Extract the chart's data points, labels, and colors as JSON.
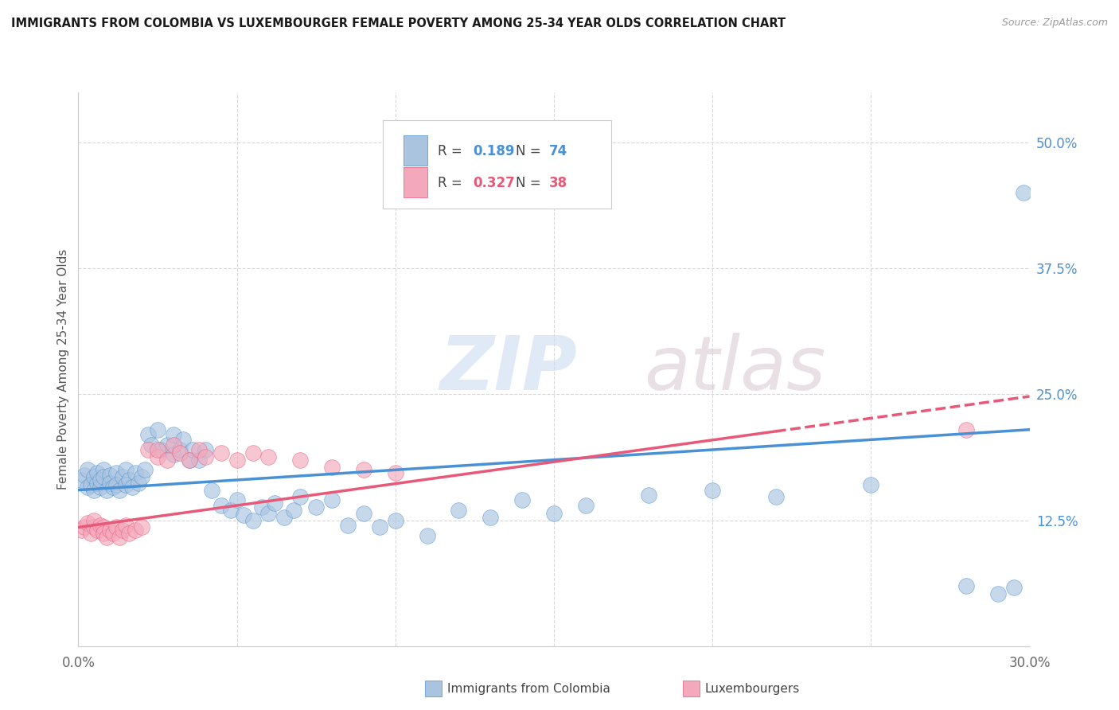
{
  "title": "IMMIGRANTS FROM COLOMBIA VS LUXEMBOURGER FEMALE POVERTY AMONG 25-34 YEAR OLDS CORRELATION CHART",
  "source": "Source: ZipAtlas.com",
  "ylabel": "Female Poverty Among 25-34 Year Olds",
  "xlim": [
    0.0,
    0.3
  ],
  "ylim": [
    0.0,
    0.55
  ],
  "yticks": [
    0.0,
    0.125,
    0.25,
    0.375,
    0.5
  ],
  "ytick_labels": [
    "",
    "12.5%",
    "25.0%",
    "37.5%",
    "50.0%"
  ],
  "xticks": [
    0.0,
    0.3
  ],
  "xtick_labels": [
    "0.0%",
    "30.0%"
  ],
  "legend1_label": "Immigrants from Colombia",
  "legend2_label": "Luxembourgers",
  "r1": 0.189,
  "n1": 74,
  "r2": 0.327,
  "n2": 38,
  "color1": "#aac4e0",
  "color2": "#f4a8bc",
  "line1_color": "#4a90d4",
  "line2_color": "#e85878",
  "watermark_zip": "ZIP",
  "watermark_atlas": "atlas",
  "background_color": "#ffffff",
  "grid_color": "#d8d8d8",
  "title_color": "#1a1a1a",
  "axis_label_color": "#555555",
  "right_tick_color": "#4a90d4",
  "colombia_x": [
    0.001,
    0.002,
    0.003,
    0.003,
    0.004,
    0.005,
    0.005,
    0.006,
    0.006,
    0.007,
    0.007,
    0.008,
    0.008,
    0.009,
    0.01,
    0.01,
    0.011,
    0.012,
    0.012,
    0.013,
    0.014,
    0.015,
    0.015,
    0.016,
    0.017,
    0.018,
    0.019,
    0.02,
    0.021,
    0.022,
    0.023,
    0.025,
    0.026,
    0.028,
    0.03,
    0.03,
    0.032,
    0.033,
    0.035,
    0.036,
    0.038,
    0.04,
    0.042,
    0.045,
    0.048,
    0.05,
    0.052,
    0.055,
    0.058,
    0.06,
    0.062,
    0.065,
    0.068,
    0.07,
    0.075,
    0.08,
    0.085,
    0.09,
    0.095,
    0.1,
    0.11,
    0.12,
    0.13,
    0.14,
    0.15,
    0.16,
    0.18,
    0.2,
    0.22,
    0.25,
    0.28,
    0.29,
    0.295,
    0.298
  ],
  "colombia_y": [
    0.165,
    0.17,
    0.158,
    0.175,
    0.16,
    0.168,
    0.155,
    0.162,
    0.172,
    0.158,
    0.165,
    0.175,
    0.168,
    0.155,
    0.17,
    0.162,
    0.158,
    0.172,
    0.16,
    0.155,
    0.168,
    0.175,
    0.16,
    0.165,
    0.158,
    0.172,
    0.162,
    0.168,
    0.175,
    0.21,
    0.2,
    0.215,
    0.195,
    0.2,
    0.21,
    0.19,
    0.195,
    0.205,
    0.185,
    0.195,
    0.185,
    0.195,
    0.155,
    0.14,
    0.135,
    0.145,
    0.13,
    0.125,
    0.138,
    0.132,
    0.142,
    0.128,
    0.135,
    0.148,
    0.138,
    0.145,
    0.12,
    0.132,
    0.118,
    0.125,
    0.11,
    0.135,
    0.128,
    0.145,
    0.132,
    0.14,
    0.15,
    0.155,
    0.148,
    0.16,
    0.06,
    0.052,
    0.058,
    0.45
  ],
  "luxembourger_x": [
    0.001,
    0.002,
    0.003,
    0.004,
    0.005,
    0.005,
    0.006,
    0.007,
    0.008,
    0.008,
    0.009,
    0.01,
    0.011,
    0.012,
    0.013,
    0.014,
    0.015,
    0.016,
    0.018,
    0.02,
    0.022,
    0.025,
    0.025,
    0.028,
    0.03,
    0.032,
    0.035,
    0.038,
    0.04,
    0.045,
    0.05,
    0.055,
    0.06,
    0.07,
    0.08,
    0.09,
    0.1,
    0.28
  ],
  "luxembourger_y": [
    0.115,
    0.118,
    0.122,
    0.112,
    0.118,
    0.125,
    0.115,
    0.12,
    0.118,
    0.112,
    0.108,
    0.115,
    0.112,
    0.118,
    0.108,
    0.115,
    0.12,
    0.112,
    0.115,
    0.118,
    0.195,
    0.188,
    0.195,
    0.185,
    0.2,
    0.192,
    0.185,
    0.195,
    0.188,
    0.192,
    0.185,
    0.192,
    0.188,
    0.185,
    0.178,
    0.175,
    0.172,
    0.215
  ],
  "line1_start_y": 0.155,
  "line1_end_y": 0.215,
  "line2_start_y": 0.118,
  "line2_end_y": 0.248
}
